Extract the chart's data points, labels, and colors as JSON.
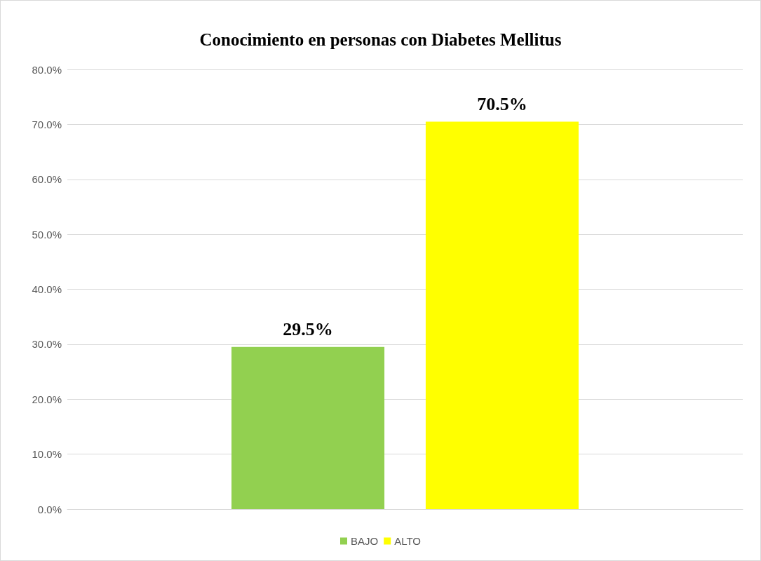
{
  "chart_data": {
    "type": "bar",
    "title": "Conocimiento en personas con Diabetes Mellitus",
    "categories": [
      null
    ],
    "series": [
      {
        "name": "BAJO",
        "color": "#92d050",
        "values": [
          29.5
        ],
        "value_labels": [
          "29.5%"
        ]
      },
      {
        "name": "ALTO",
        "color": "#ffff00",
        "values": [
          70.5
        ],
        "value_labels": [
          "70.5%"
        ]
      }
    ],
    "ylim": [
      0,
      80
    ],
    "yticks": [
      {
        "value": 0,
        "label": "0.0%"
      },
      {
        "value": 10,
        "label": "10.0%"
      },
      {
        "value": 20,
        "label": "20.0%"
      },
      {
        "value": 30,
        "label": "30.0%"
      },
      {
        "value": 40,
        "label": "40.0%"
      },
      {
        "value": 50,
        "label": "50.0%"
      },
      {
        "value": 60,
        "label": "60.0%"
      },
      {
        "value": 70,
        "label": "70.0%"
      },
      {
        "value": 80,
        "label": "80.0%"
      }
    ],
    "grid": "y",
    "legend": "bottom"
  }
}
